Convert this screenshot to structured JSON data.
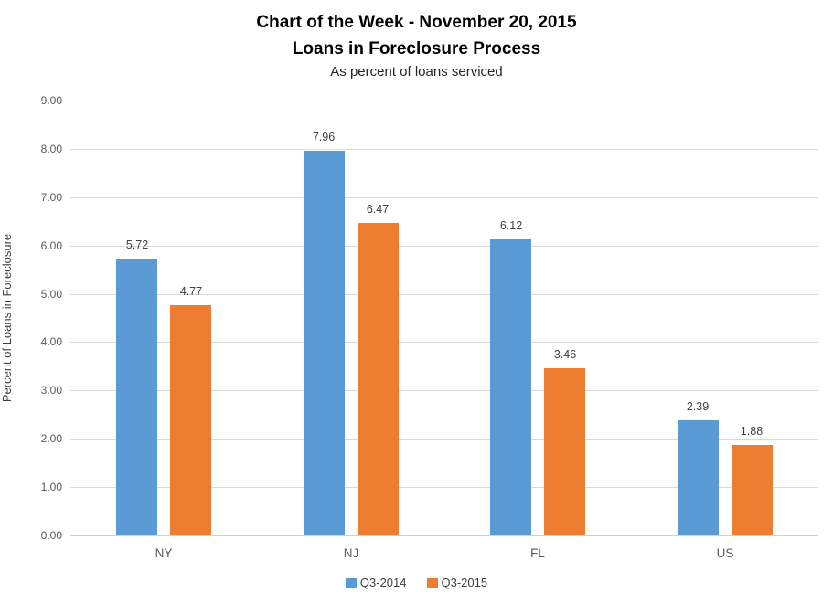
{
  "title": {
    "line1": "Chart of the Week - November 20, 2015",
    "line2": "Loans in Foreclosure Process",
    "subtitle": "As percent of loans serviced"
  },
  "chart_data": {
    "type": "bar",
    "categories": [
      "NY",
      "NJ",
      "FL",
      "US"
    ],
    "series": [
      {
        "name": "Q3-2014",
        "color": "#5b9bd5",
        "values": [
          5.72,
          7.96,
          6.12,
          2.39
        ]
      },
      {
        "name": "Q3-2015",
        "color": "#ed7d31",
        "values": [
          4.77,
          6.47,
          3.46,
          1.88
        ]
      }
    ],
    "xlabel": "",
    "ylabel": "Percent of Loans in Foreclosure",
    "ylim": [
      0,
      9
    ],
    "ytick_labels": [
      "0.00",
      "1.00",
      "2.00",
      "3.00",
      "4.00",
      "5.00",
      "6.00",
      "7.00",
      "8.00",
      "9.00"
    ],
    "grid": true,
    "legend_position": "bottom",
    "data_labels": true,
    "data_label_format": "0.00"
  }
}
